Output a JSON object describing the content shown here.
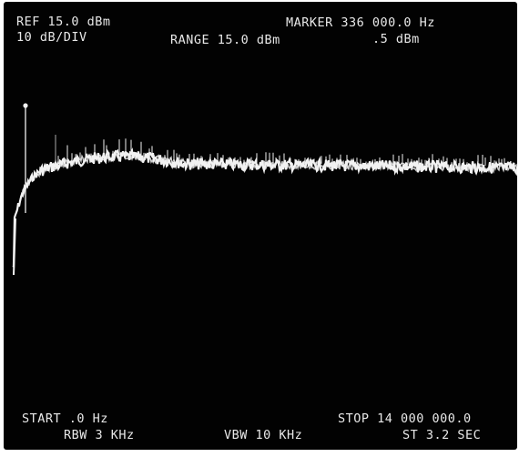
{
  "display": {
    "ref_level": "REF 15.0 dBm",
    "scale": "10 dB/DIV",
    "range": "RANGE 15.0 dBm",
    "marker_freq": "MARKER 336 000.0 Hz",
    "marker_level": ".5 dBm",
    "start_freq": "START .0 Hz",
    "stop_freq": "STOP 14 000 000.0",
    "rbw": "RBW 3 KHz",
    "vbw": "VBW 10 KHz",
    "sweep_time": "ST 3.2 SEC"
  },
  "colors": {
    "screen_background": "#020202",
    "trace": "#f2f2f2",
    "text": "#e8e8e8"
  }
}
